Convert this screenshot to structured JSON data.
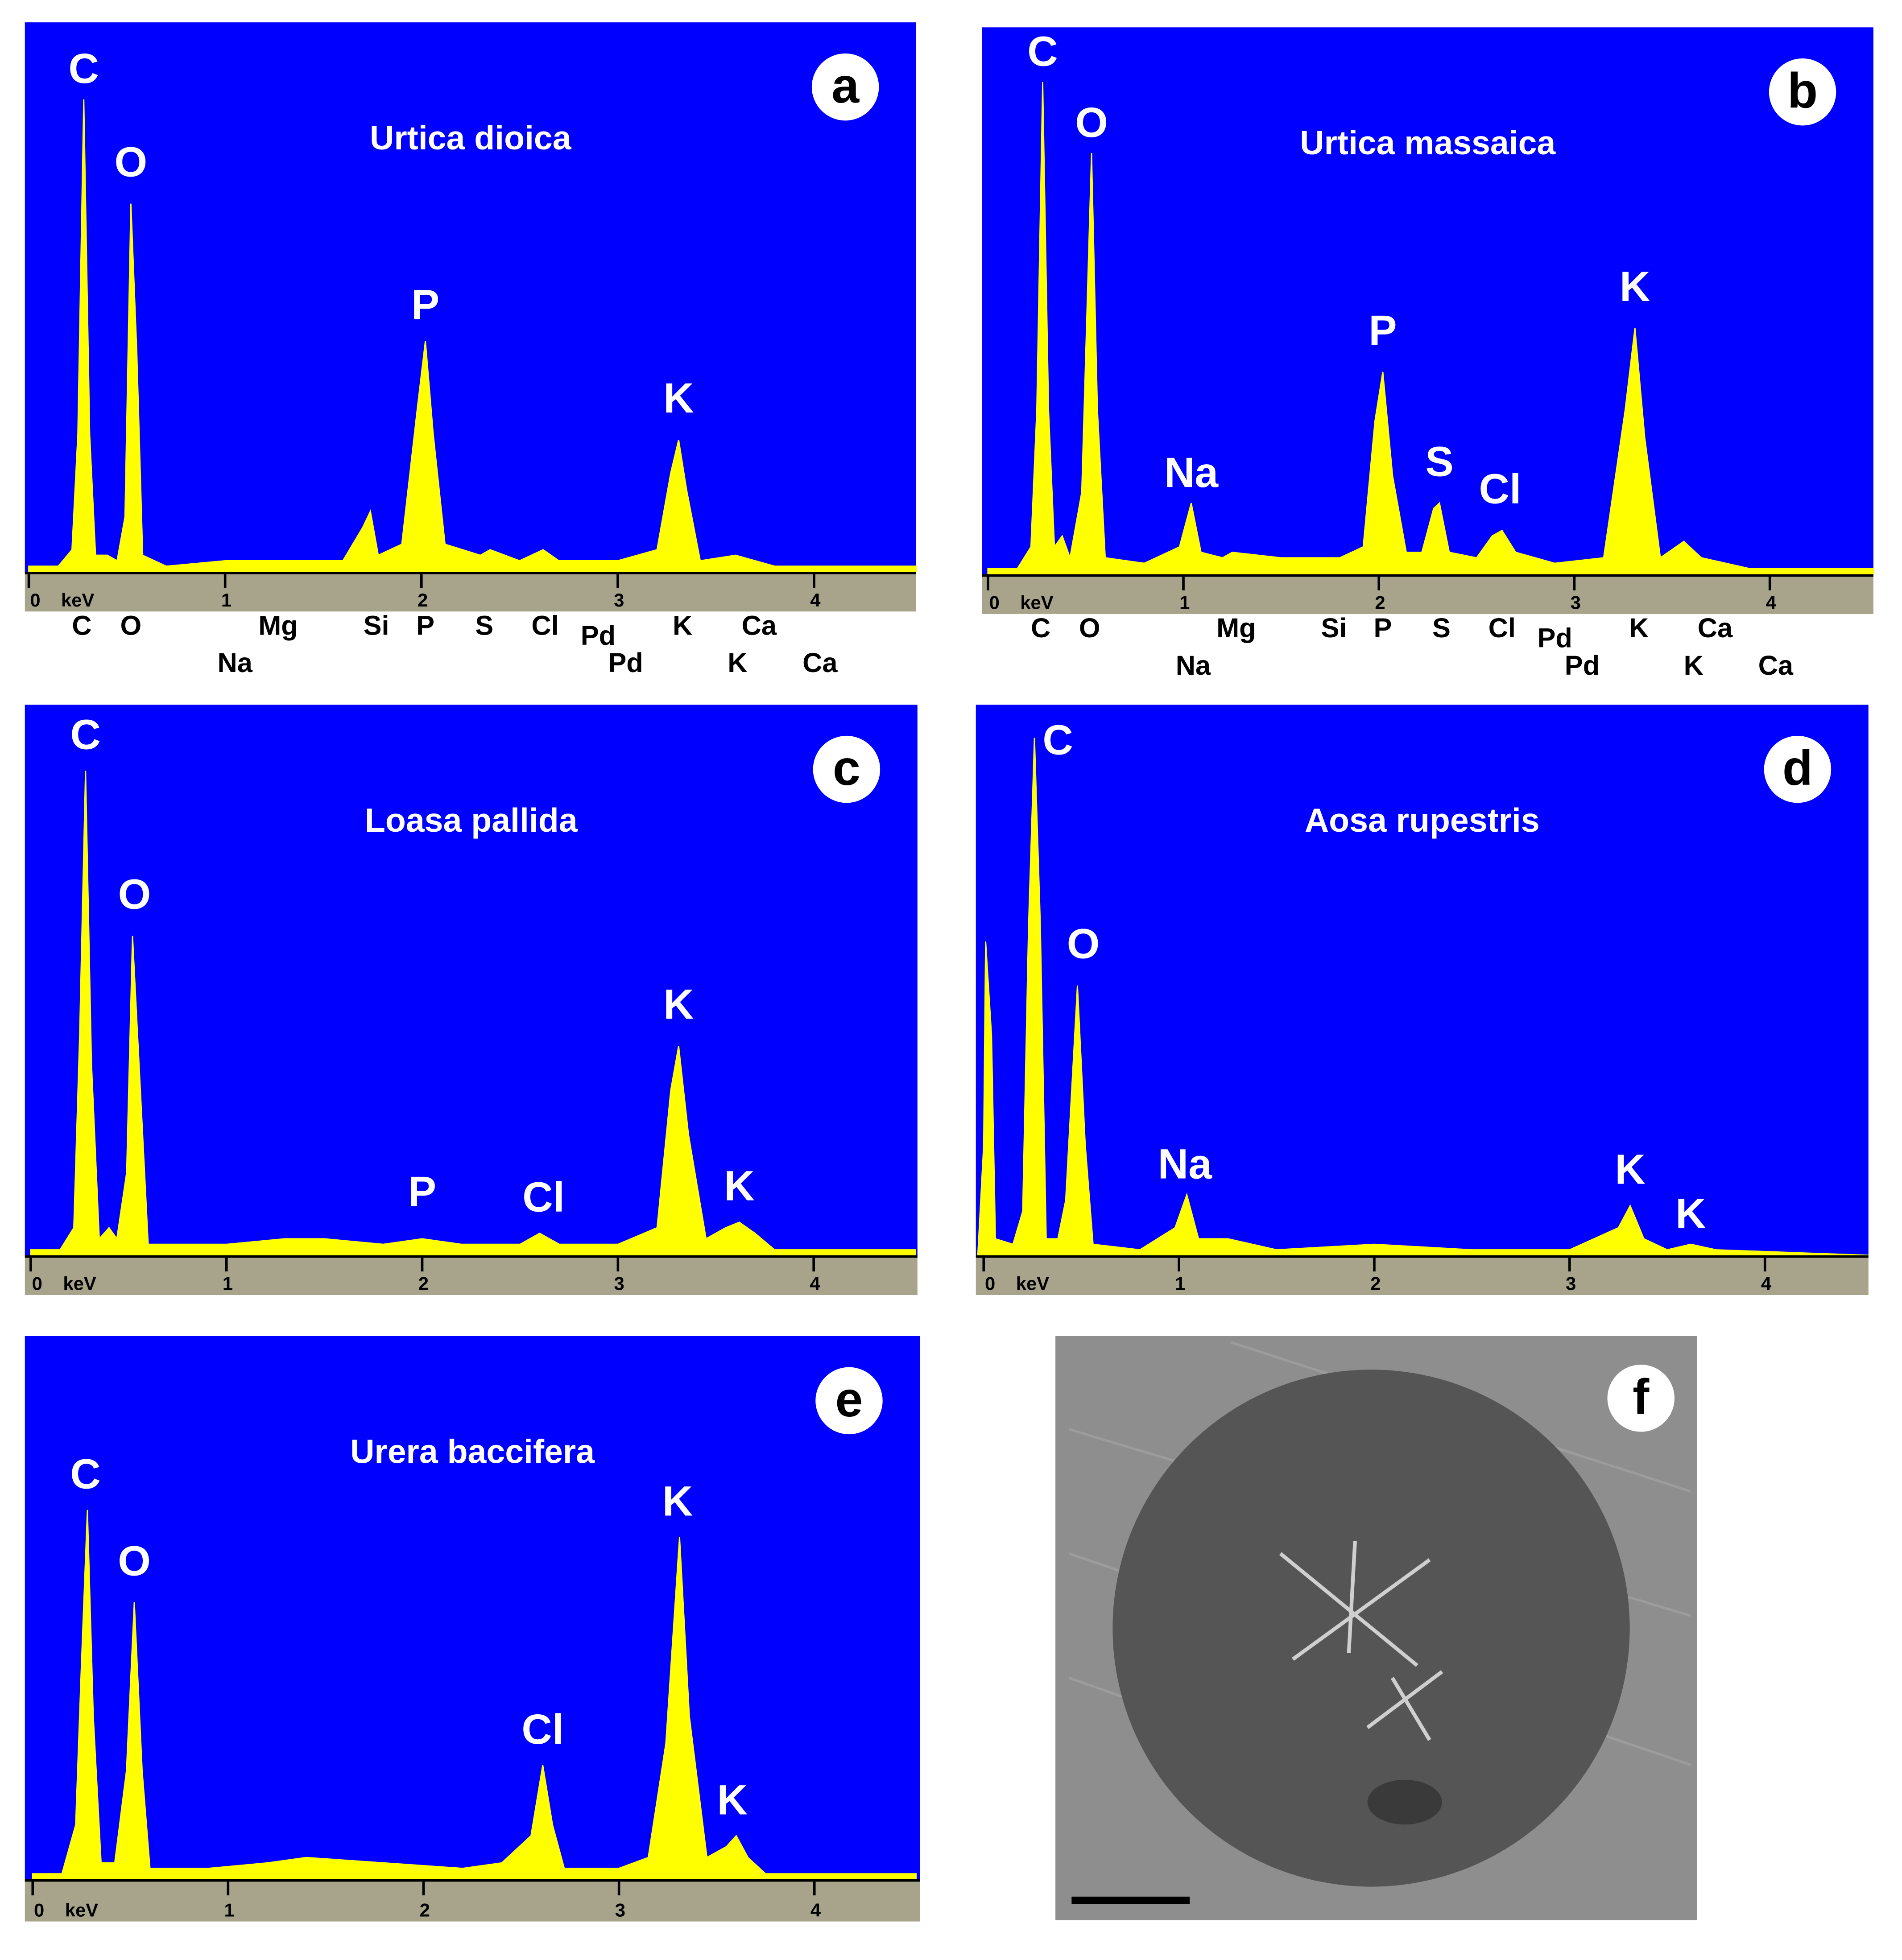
{
  "chart_data": [
    {
      "type": "area",
      "title": "Urtica dioica",
      "panel": "a",
      "xlabel": "keV",
      "color": "#ffff00",
      "background": "#0000ff",
      "xlim": [
        -0.02,
        4.52
      ],
      "ylim": [
        0,
        100
      ],
      "xticks": [
        0,
        1,
        2,
        3,
        4
      ],
      "x": [
        0,
        0.15,
        0.22,
        0.25,
        0.28,
        0.31,
        0.34,
        0.4,
        0.45,
        0.49,
        0.52,
        0.55,
        0.58,
        0.7,
        1.0,
        1.3,
        1.6,
        1.7,
        1.74,
        1.78,
        1.9,
        1.98,
        2.02,
        2.06,
        2.12,
        2.3,
        2.35,
        2.5,
        2.62,
        2.7,
        3.0,
        3.2,
        3.27,
        3.31,
        3.35,
        3.42,
        3.6,
        3.8,
        4.0,
        4.52
      ],
      "values": [
        1,
        1,
        4,
        25,
        86,
        25,
        3,
        3,
        2,
        10,
        67,
        40,
        3,
        1,
        2,
        2,
        2,
        8,
        11,
        3,
        5,
        30,
        42,
        25,
        5,
        3,
        4,
        2,
        4,
        2,
        2,
        4,
        18,
        24,
        15,
        2,
        3,
        1,
        1,
        1
      ],
      "annotations": [
        {
          "text": "C",
          "x": 0.28,
          "y": 91
        },
        {
          "text": "O",
          "x": 0.52,
          "y": 74
        },
        {
          "text": "P",
          "x": 2.02,
          "y": 48
        },
        {
          "text": "K",
          "x": 3.31,
          "y": 31
        }
      ],
      "line_labels": [
        {
          "text": "C",
          "x": 0.27
        },
        {
          "text": "O",
          "x": 0.52
        },
        {
          "text": "Mg",
          "x": 1.27
        },
        {
          "text": "Si",
          "x": 1.77
        },
        {
          "text": "P",
          "x": 2.02
        },
        {
          "text": "S",
          "x": 2.32
        },
        {
          "text": "Cl",
          "x": 2.63
        },
        {
          "text": "Pd",
          "x": 2.9
        },
        {
          "text": "K",
          "x": 3.33
        },
        {
          "text": "Ca",
          "x": 3.72
        }
      ],
      "line_labels_2": [
        {
          "text": "Na",
          "x": 1.05
        },
        {
          "text": "Pd",
          "x": 3.04
        },
        {
          "text": "K",
          "x": 3.61
        },
        {
          "text": "Ca",
          "x": 4.03
        }
      ]
    },
    {
      "type": "area",
      "title": "Urtica massaica",
      "panel": "b",
      "xlabel": "keV",
      "color": "#ffff00",
      "background": "#0000ff",
      "xlim": [
        -0.03,
        4.53
      ],
      "ylim": [
        0,
        100
      ],
      "xticks": [
        0,
        1,
        2,
        3,
        4
      ],
      "x": [
        0,
        0.15,
        0.22,
        0.25,
        0.28,
        0.31,
        0.34,
        0.38,
        0.42,
        0.48,
        0.53,
        0.56,
        0.6,
        0.8,
        0.98,
        1.04,
        1.09,
        1.2,
        1.25,
        1.5,
        1.8,
        1.92,
        1.98,
        2.02,
        2.07,
        2.14,
        2.22,
        2.28,
        2.31,
        2.36,
        2.5,
        2.58,
        2.63,
        2.7,
        2.9,
        3.15,
        3.26,
        3.31,
        3.36,
        3.44,
        3.56,
        3.65,
        3.9,
        4.53
      ],
      "values": [
        1,
        1,
        5,
        30,
        90,
        30,
        5,
        7,
        3,
        15,
        77,
        30,
        3,
        2,
        5,
        13,
        4,
        3,
        4,
        3,
        3,
        5,
        28,
        37,
        18,
        4,
        4,
        12,
        13,
        4,
        3,
        7,
        8,
        4,
        2,
        3,
        30,
        45,
        25,
        3,
        6,
        3,
        1,
        1
      ],
      "annotations": [
        {
          "text": "C",
          "x": 0.28,
          "y": 95
        },
        {
          "text": "O",
          "x": 0.53,
          "y": 82
        },
        {
          "text": "Na",
          "x": 1.04,
          "y": 18
        },
        {
          "text": "P",
          "x": 2.02,
          "y": 44
        },
        {
          "text": "S",
          "x": 2.31,
          "y": 20
        },
        {
          "text": "Cl",
          "x": 2.62,
          "y": 15
        },
        {
          "text": "K",
          "x": 3.31,
          "y": 52
        }
      ],
      "line_labels": [
        {
          "text": "C",
          "x": 0.27
        },
        {
          "text": "O",
          "x": 0.52
        },
        {
          "text": "Mg",
          "x": 1.27
        },
        {
          "text": "Si",
          "x": 1.77
        },
        {
          "text": "P",
          "x": 2.02
        },
        {
          "text": "S",
          "x": 2.32
        },
        {
          "text": "Cl",
          "x": 2.63
        },
        {
          "text": "Pd",
          "x": 2.9
        },
        {
          "text": "K",
          "x": 3.33
        },
        {
          "text": "Ca",
          "x": 3.72
        }
      ],
      "line_labels_2": [
        {
          "text": "Na",
          "x": 1.05
        },
        {
          "text": "Pd",
          "x": 3.04
        },
        {
          "text": "K",
          "x": 3.61
        },
        {
          "text": "Ca",
          "x": 4.03
        }
      ]
    },
    {
      "type": "area",
      "title": "Loasa pallida",
      "panel": "c",
      "xlabel": "keV",
      "color": "#ffff00",
      "background": "#0000ff",
      "xlim": [
        -0.03,
        4.53
      ],
      "ylim": [
        0,
        100
      ],
      "xticks": [
        0,
        1,
        2,
        3,
        4
      ],
      "x": [
        0,
        0.15,
        0.22,
        0.25,
        0.28,
        0.31,
        0.35,
        0.4,
        0.44,
        0.49,
        0.52,
        0.56,
        0.6,
        0.8,
        1.0,
        1.3,
        1.5,
        1.8,
        2.0,
        2.2,
        2.5,
        2.6,
        2.7,
        3.0,
        3.2,
        3.27,
        3.31,
        3.36,
        3.45,
        3.55,
        3.62,
        3.7,
        3.8,
        4.52
      ],
      "values": [
        1,
        1,
        5,
        40,
        88,
        35,
        3,
        5,
        3,
        15,
        58,
        30,
        2,
        2,
        2,
        3,
        3,
        2,
        3,
        2,
        2,
        4,
        2,
        2,
        5,
        30,
        38,
        22,
        3,
        5,
        6,
        4,
        1,
        1
      ],
      "annotations": [
        {
          "text": "C",
          "x": 0.28,
          "y": 94
        },
        {
          "text": "O",
          "x": 0.53,
          "y": 65
        },
        {
          "text": "P",
          "x": 2.0,
          "y": 11
        },
        {
          "text": "Cl",
          "x": 2.62,
          "y": 10
        },
        {
          "text": "K",
          "x": 3.31,
          "y": 45
        },
        {
          "text": "K",
          "x": 3.62,
          "y": 12
        }
      ]
    },
    {
      "type": "area",
      "title": "Aosa rupestris",
      "panel": "d",
      "xlabel": "keV",
      "color": "#ffff00",
      "background": "#0000ff",
      "xlim": [
        -0.04,
        4.53
      ],
      "ylim": [
        0,
        100
      ],
      "xticks": [
        0,
        1,
        2,
        3,
        4
      ],
      "x": [
        -0.03,
        0.0,
        0.01,
        0.04,
        0.06,
        0.15,
        0.2,
        0.23,
        0.26,
        0.29,
        0.32,
        0.38,
        0.42,
        0.48,
        0.52,
        0.56,
        0.8,
        0.98,
        1.04,
        1.1,
        1.25,
        1.5,
        2.0,
        2.5,
        3.0,
        3.25,
        3.31,
        3.38,
        3.5,
        3.62,
        3.75,
        4.53
      ],
      "values": [
        0,
        20,
        57,
        40,
        3,
        2,
        8,
        60,
        94,
        60,
        3,
        3,
        10,
        49,
        20,
        2,
        1,
        5,
        11,
        3,
        3,
        1,
        2,
        1,
        1,
        5,
        9,
        3,
        1,
        2,
        1,
        0
      ],
      "annotations": [
        {
          "text": "C",
          "x": 0.38,
          "y": 93
        },
        {
          "text": "O",
          "x": 0.51,
          "y": 56
        },
        {
          "text": "Na",
          "x": 1.03,
          "y": 16
        },
        {
          "text": "K",
          "x": 3.31,
          "y": 15
        },
        {
          "text": "K",
          "x": 3.62,
          "y": 7
        }
      ]
    },
    {
      "type": "area",
      "title": "Urera baccifera",
      "panel": "e",
      "xlabel": "keV",
      "color": "#ffff00",
      "background": "#0000ff",
      "xlim": [
        -0.04,
        4.54
      ],
      "ylim": [
        0,
        100
      ],
      "xticks": [
        0,
        1,
        2,
        3,
        4
      ],
      "x": [
        0,
        0.15,
        0.22,
        0.25,
        0.28,
        0.31,
        0.35,
        0.42,
        0.48,
        0.52,
        0.56,
        0.6,
        0.9,
        1.2,
        1.4,
        1.8,
        2.2,
        2.4,
        2.55,
        2.61,
        2.66,
        2.72,
        3.0,
        3.15,
        3.24,
        3.31,
        3.36,
        3.45,
        3.55,
        3.6,
        3.66,
        3.75,
        4.52
      ],
      "values": [
        1,
        1,
        10,
        40,
        68,
        30,
        3,
        3,
        20,
        51,
        20,
        2,
        2,
        3,
        4,
        3,
        2,
        3,
        8,
        21,
        10,
        2,
        2,
        4,
        25,
        63,
        30,
        4,
        6,
        8,
        4,
        1,
        1
      ],
      "annotations": [
        {
          "text": "C",
          "x": 0.27,
          "y": 74
        },
        {
          "text": "O",
          "x": 0.52,
          "y": 58
        },
        {
          "text": "Cl",
          "x": 2.61,
          "y": 27
        },
        {
          "text": "K",
          "x": 3.3,
          "y": 69
        },
        {
          "text": "K",
          "x": 3.58,
          "y": 14
        }
      ]
    }
  ],
  "image": {
    "panel": "f"
  }
}
